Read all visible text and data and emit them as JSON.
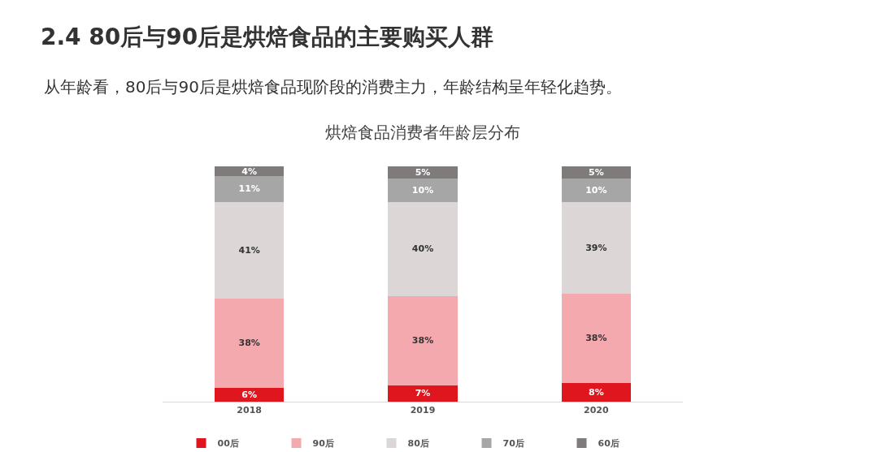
{
  "chart_data": {
    "type": "bar",
    "stacked": true,
    "title": "2.4 80后与90后是烘焙食品的主要购买人群",
    "subtitle": "从年龄看，80后与90后是烘焙食品现阶段的消费主力，年龄结构呈年轻化趋势。",
    "annotations": [
      "烘焙食品消费者年龄层分布"
    ],
    "categories": [
      "2018",
      "2019",
      "2020"
    ],
    "series": [
      {
        "name": "00后",
        "color": "#e0161e",
        "values": [
          6,
          7,
          8
        ],
        "value_labels": [
          "6%",
          "7%",
          "8%"
        ]
      },
      {
        "name": "90后",
        "color": "#f4a9ae",
        "values": [
          38,
          38,
          38
        ],
        "value_labels": [
          "38%",
          "38%",
          "38%"
        ]
      },
      {
        "name": "80后",
        "color": "#dcd6d6",
        "values": [
          41,
          40,
          39
        ],
        "value_labels": [
          "41%",
          "40%",
          "39%"
        ]
      },
      {
        "name": "70后",
        "color": "#a6a6a6",
        "values": [
          11,
          10,
          10
        ],
        "value_labels": [
          "11%",
          "10%",
          "10%"
        ]
      },
      {
        "name": "60后",
        "color": "#7f7b7b",
        "values": [
          4,
          5,
          5
        ],
        "value_labels": [
          "4%",
          "5%",
          "5%"
        ]
      }
    ],
    "legend": "bottom",
    "tick_labels": "x"
  }
}
